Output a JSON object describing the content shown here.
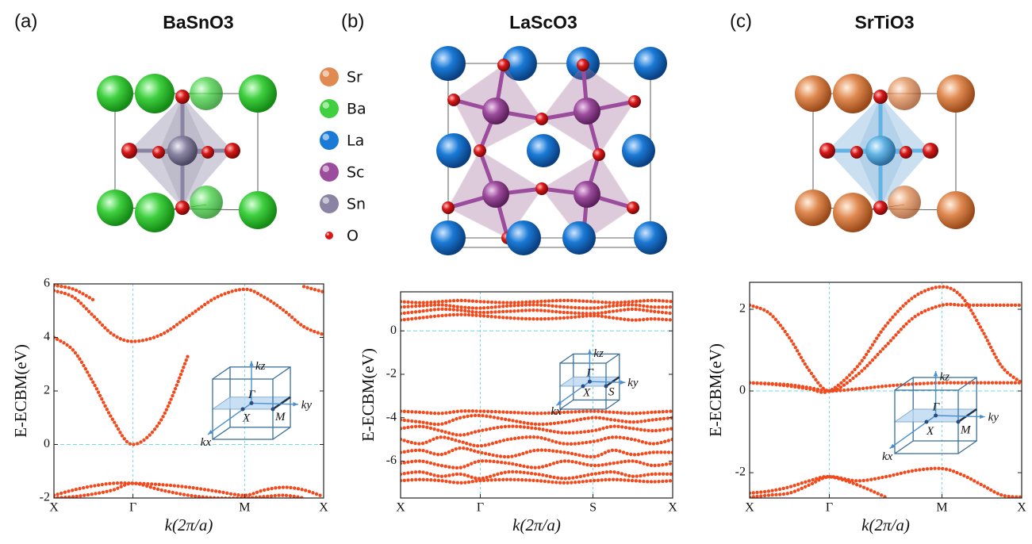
{
  "atom_legend": [
    {
      "name": "Sr",
      "color": "#e08a52"
    },
    {
      "name": "Ba",
      "color": "#3fcf3f"
    },
    {
      "name": "La",
      "color": "#1a7ad6"
    },
    {
      "name": "Sc",
      "color": "#9c4c9c"
    },
    {
      "name": "Sn",
      "color": "#8a84a2"
    },
    {
      "name": "O",
      "color": "#d81818"
    }
  ],
  "chart_data": [
    {
      "type": "line",
      "panel_label": "(a)",
      "title": "BaSnO3",
      "x_label": "k(2π/a)",
      "y_label": "E-ECBM(eV)",
      "xlim": [
        0,
        1.707
      ],
      "ylim": [
        -2,
        6
      ],
      "yticks": [
        -2,
        0,
        2,
        4,
        6
      ],
      "xticks": [
        {
          "value": 0,
          "label": "X"
        },
        {
          "value": 0.5,
          "label": "Γ"
        },
        {
          "value": 1.207,
          "label": "M"
        },
        {
          "value": 1.707,
          "label": "X"
        }
      ],
      "grid": true,
      "reference_line": 0,
      "inset_labels": [
        "kz",
        "ky",
        "kx",
        "Γ",
        "X",
        "M"
      ],
      "x": [
        0,
        0.125,
        0.25,
        0.375,
        0.5,
        0.677,
        0.854,
        1.03,
        1.207,
        1.332,
        1.457,
        1.582,
        1.707
      ],
      "series": [
        {
          "color": "#f24a1c",
          "values": [
            4.0,
            3.5,
            2.3,
            0.9,
            0.0,
            0.9,
            3.4,
            null,
            null,
            null,
            null,
            null,
            null
          ]
        },
        {
          "color": "#f24a1c",
          "values": [
            5.75,
            5.5,
            4.8,
            4.1,
            3.85,
            4.1,
            4.8,
            5.5,
            5.8,
            5.5,
            5.0,
            4.4,
            4.1
          ]
        },
        {
          "color": "#f24a1c",
          "values": [
            5.95,
            5.8,
            5.4,
            null,
            null,
            null,
            null,
            null,
            null,
            null,
            null,
            5.9,
            5.7
          ]
        },
        {
          "color": "#f24a1c",
          "values": [
            -1.9,
            -1.7,
            -1.55,
            -1.45,
            -1.45,
            -1.5,
            -1.6,
            -1.75,
            -1.9,
            -1.7,
            -1.6,
            -1.7,
            -1.95
          ]
        },
        {
          "color": "#f24a1c",
          "values": [
            -2.0,
            -1.95,
            -1.85,
            -1.7,
            -1.45,
            -1.7,
            -1.9,
            -2.0,
            -2.0,
            -1.95,
            -1.9,
            -2.0,
            null
          ]
        }
      ]
    },
    {
      "type": "line",
      "panel_label": "(b)",
      "title": "LaScO3",
      "x_label": "k(2π/a)",
      "y_label": "E-ECBM(eV)",
      "xlim": [
        0,
        1.707
      ],
      "ylim": [
        -7.7,
        1.8
      ],
      "yticks": [
        -6,
        -4,
        -2,
        0
      ],
      "xticks": [
        {
          "value": 0,
          "label": "X"
        },
        {
          "value": 0.5,
          "label": "Γ"
        },
        {
          "value": 1.207,
          "label": "S"
        },
        {
          "value": 1.707,
          "label": "X"
        }
      ],
      "grid": true,
      "reference_line": 0,
      "inset_labels": [
        "kz",
        "ky",
        "kx",
        "Γ",
        "X",
        "S"
      ],
      "x": [
        0,
        0.125,
        0.25,
        0.375,
        0.5,
        0.677,
        0.854,
        1.03,
        1.207,
        1.332,
        1.457,
        1.582,
        1.707
      ],
      "series": [
        {
          "color": "#f24a1c",
          "values": [
            1.35,
            1.3,
            1.35,
            1.4,
            1.35,
            1.3,
            1.35,
            1.4,
            1.35,
            1.3,
            1.35,
            1.4,
            1.35
          ]
        },
        {
          "color": "#f24a1c",
          "values": [
            1.1,
            1.15,
            1.2,
            1.1,
            1.05,
            1.15,
            1.2,
            1.1,
            1.05,
            1.15,
            1.2,
            1.1,
            1.1
          ]
        },
        {
          "color": "#f24a1c",
          "values": [
            0.8,
            0.9,
            1.0,
            0.95,
            0.85,
            0.9,
            0.95,
            0.85,
            0.8,
            0.9,
            1.0,
            0.9,
            0.8
          ]
        },
        {
          "color": "#f24a1c",
          "values": [
            0.5,
            0.6,
            0.7,
            0.75,
            0.7,
            0.6,
            0.55,
            0.6,
            0.7,
            0.6,
            0.5,
            0.55,
            0.5
          ]
        },
        {
          "color": "#f24a1c",
          "values": [
            -3.7,
            -3.75,
            -3.8,
            -3.7,
            -3.7,
            -3.75,
            -3.8,
            -3.75,
            -3.7,
            -3.75,
            -3.8,
            -3.75,
            -3.7
          ]
        },
        {
          "color": "#f24a1c",
          "values": [
            -4.1,
            -4.2,
            -4.3,
            -4.0,
            -3.9,
            -4.1,
            -4.3,
            -4.2,
            -4.0,
            -4.1,
            -4.2,
            -4.1,
            -4.0
          ]
        },
        {
          "color": "#f24a1c",
          "values": [
            -4.5,
            -4.4,
            -4.6,
            -4.8,
            -4.6,
            -4.4,
            -4.5,
            -4.7,
            -4.6,
            -4.4,
            -4.5,
            -4.6,
            -4.5
          ]
        },
        {
          "color": "#f24a1c",
          "values": [
            -5.0,
            -5.2,
            -4.9,
            -5.1,
            -5.3,
            -5.0,
            -4.9,
            -5.2,
            -5.1,
            -4.9,
            -5.0,
            -5.2,
            -5.0
          ]
        },
        {
          "color": "#f24a1c",
          "values": [
            -5.6,
            -5.5,
            -5.7,
            -5.4,
            -5.6,
            -5.8,
            -5.5,
            -5.6,
            -5.8,
            -5.5,
            -5.7,
            -5.6,
            -5.6
          ]
        },
        {
          "color": "#f24a1c",
          "values": [
            -6.1,
            -6.0,
            -6.2,
            -6.3,
            -6.0,
            -6.1,
            -6.3,
            -6.0,
            -6.2,
            -6.1,
            -6.0,
            -6.2,
            -6.1
          ]
        },
        {
          "color": "#f24a1c",
          "values": [
            -6.6,
            -6.5,
            -6.7,
            -6.6,
            -6.8,
            -6.5,
            -6.6,
            -6.8,
            -6.6,
            -6.5,
            -6.7,
            -6.6,
            -6.6
          ]
        },
        {
          "color": "#f24a1c",
          "values": [
            -6.9,
            -6.85,
            -6.9,
            -7.0,
            -6.9,
            -6.85,
            -6.9,
            -7.0,
            -6.9,
            -6.85,
            -6.9,
            -6.95,
            -6.9
          ]
        }
      ]
    },
    {
      "type": "line",
      "panel_label": "(c)",
      "title": "SrTiO3",
      "x_label": "k(2π/a)",
      "y_label": "E-ECBM(eV)",
      "xlim": [
        0,
        1.707
      ],
      "ylim": [
        -2.62,
        2.66
      ],
      "yticks": [
        -2,
        0,
        2
      ],
      "xticks": [
        {
          "value": 0,
          "label": "X"
        },
        {
          "value": 0.5,
          "label": "Γ"
        },
        {
          "value": 1.207,
          "label": "M"
        },
        {
          "value": 1.707,
          "label": "X"
        }
      ],
      "grid": true,
      "reference_line": 0,
      "inset_labels": [
        "kz",
        "ky",
        "kx",
        "Γ",
        "X",
        "M"
      ],
      "x": [
        0,
        0.125,
        0.25,
        0.375,
        0.5,
        0.677,
        0.854,
        1.03,
        1.207,
        1.332,
        1.457,
        1.582,
        1.707
      ],
      "series": [
        {
          "color": "#f24a1c",
          "values": [
            0.2,
            0.18,
            0.15,
            0.08,
            0.0,
            0.05,
            0.12,
            0.17,
            0.2,
            0.2,
            0.2,
            0.2,
            0.2
          ]
        },
        {
          "color": "#f24a1c",
          "values": [
            2.1,
            1.9,
            1.3,
            0.5,
            0.0,
            0.4,
            1.1,
            1.8,
            2.1,
            2.1,
            2.1,
            2.1,
            2.1
          ]
        },
        {
          "color": "#f24a1c",
          "values": [
            0.2,
            0.17,
            0.12,
            0.05,
            0.0,
            0.6,
            1.6,
            2.3,
            2.55,
            2.3,
            1.5,
            0.6,
            0.2
          ]
        },
        {
          "color": "#f24a1c",
          "values": [
            -2.5,
            -2.45,
            -2.35,
            -2.2,
            -2.1,
            -2.3,
            -2.6,
            null,
            null,
            null,
            null,
            null,
            null
          ]
        },
        {
          "color": "#f24a1c",
          "values": [
            -2.6,
            -2.55,
            -2.5,
            -2.3,
            -2.1,
            -2.2,
            -2.1,
            -1.95,
            -1.9,
            -2.05,
            -2.3,
            -2.55,
            -2.6
          ]
        }
      ]
    }
  ]
}
